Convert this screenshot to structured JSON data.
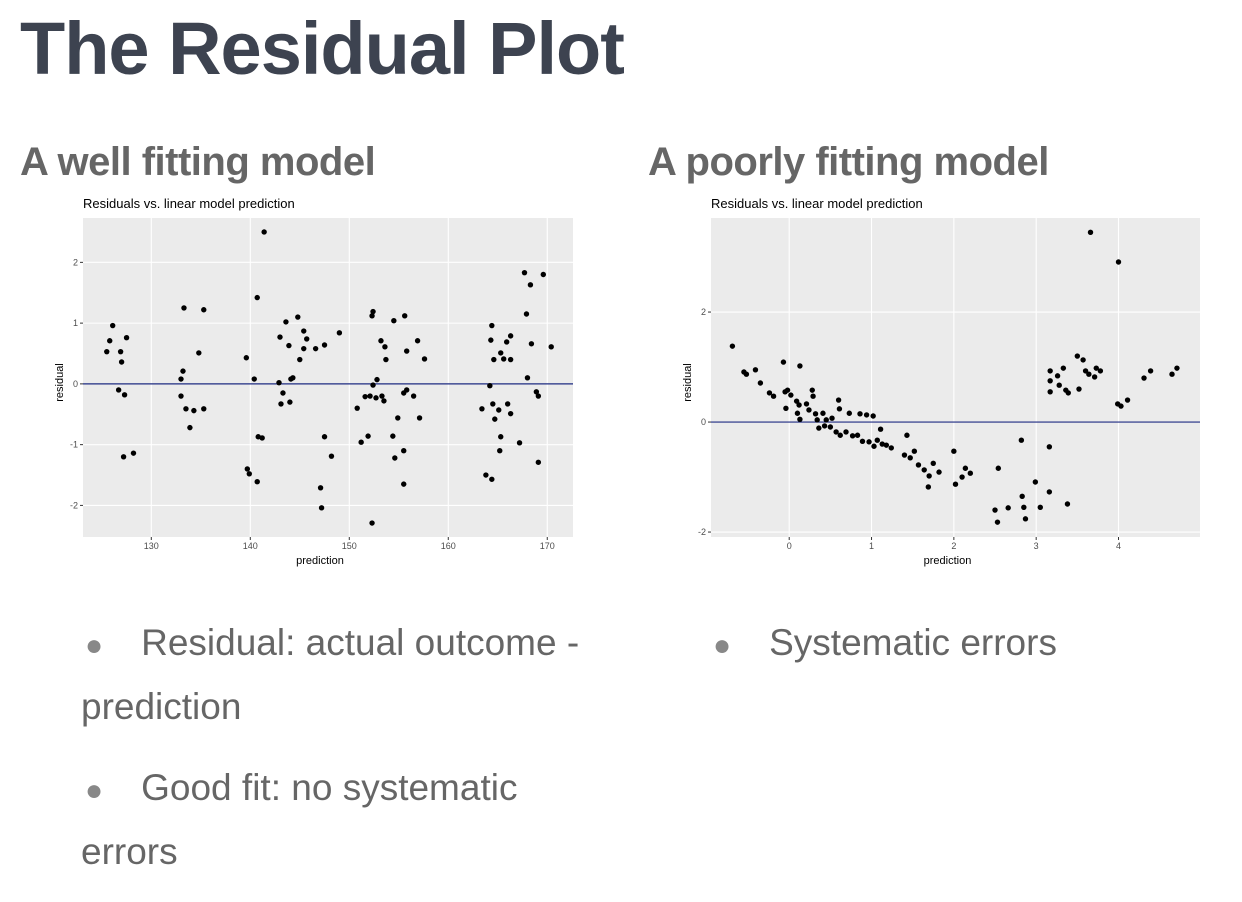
{
  "title": "The Residual Plot",
  "columns": [
    {
      "heading": "A well fitting model",
      "bullets": [
        "Residual: actual outcome - prediction",
        "Good fit: no systematic errors"
      ]
    },
    {
      "heading": "A poorly fitting model",
      "bullets": [
        "Systematic errors"
      ]
    }
  ],
  "chart_data": [
    {
      "type": "scatter",
      "title": "Residuals vs. linear model prediction",
      "xlabel": "prediction",
      "ylabel": "residual",
      "color": "#000000",
      "hline": 0,
      "hline_color": "#1c2a80",
      "grid": true,
      "xlim": [
        123.1,
        172.6
      ],
      "ylim": [
        -2.52,
        2.73
      ],
      "xticks": [
        130,
        140,
        150,
        160,
        170
      ],
      "yticks": [
        -2,
        -1,
        0,
        1,
        2
      ],
      "x": [
        125.5,
        125.8,
        126.1,
        126.9,
        127.0,
        127.5,
        126.7,
        127.3,
        127.2,
        128.2,
        133.3,
        135.3,
        133.2,
        133.0,
        133.0,
        133.5,
        134.3,
        135.3,
        134.8,
        133.9,
        139.6,
        140.4,
        140.7,
        141.4,
        139.7,
        139.9,
        140.7,
        140.8,
        141.2,
        143.0,
        143.6,
        143.9,
        144.8,
        145.4,
        144.1,
        144.3,
        142.9,
        143.3,
        143.1,
        144.0,
        145.7,
        145.4,
        145.0,
        146.6,
        147.5,
        149.0,
        147.5,
        148.2,
        147.1,
        147.2,
        152.3,
        152.4,
        152.3,
        153.2,
        153.6,
        153.7,
        154.5,
        155.6,
        155.8,
        156.9,
        157.6,
        152.4,
        152.8,
        152.1,
        152.7,
        153.3,
        153.5,
        151.6,
        150.8,
        151.2,
        151.9,
        154.9,
        154.4,
        154.6,
        155.5,
        155.5,
        155.8,
        155.5,
        156.5,
        157.1,
        164.4,
        164.3,
        165.3,
        165.6,
        165.9,
        166.3,
        166.3,
        164.6,
        164.2,
        163.4,
        164.5,
        164.7,
        165.1,
        166.0,
        166.3,
        165.3,
        165.2,
        163.8,
        164.4,
        167.2,
        167.7,
        168.3,
        169.6,
        167.9,
        168.4,
        170.4,
        168.0,
        168.9,
        169.1,
        169.1
      ],
      "values": [
        0.53,
        0.71,
        0.96,
        0.53,
        0.36,
        0.76,
        -0.1,
        -0.18,
        -1.2,
        -1.14,
        1.25,
        1.22,
        0.21,
        0.08,
        -0.2,
        -0.41,
        -0.44,
        -0.41,
        0.51,
        -0.72,
        0.43,
        0.08,
        1.42,
        2.5,
        -1.4,
        -1.48,
        -1.61,
        -0.87,
        -0.89,
        0.77,
        1.02,
        0.63,
        1.1,
        0.87,
        0.08,
        0.1,
        0.02,
        -0.15,
        -0.33,
        -0.3,
        0.74,
        0.58,
        0.4,
        0.58,
        0.64,
        0.84,
        -0.87,
        -1.19,
        -1.71,
        -2.04,
        -2.29,
        1.19,
        1.12,
        0.71,
        0.61,
        0.4,
        1.04,
        1.12,
        0.54,
        0.71,
        0.41,
        -0.02,
        0.07,
        -0.2,
        -0.23,
        -0.2,
        -0.28,
        -0.21,
        -0.4,
        -0.96,
        -0.86,
        -0.56,
        -0.86,
        -1.22,
        -1.1,
        -1.65,
        -0.1,
        -0.15,
        -0.2,
        -0.56,
        0.96,
        0.72,
        0.51,
        0.41,
        0.69,
        0.79,
        0.4,
        0.4,
        -0.03,
        -0.41,
        -0.33,
        -0.58,
        -0.43,
        -0.33,
        -0.49,
        -0.87,
        -1.1,
        -1.5,
        -1.57,
        -0.97,
        1.83,
        1.63,
        1.8,
        1.15,
        0.66,
        0.61,
        0.1,
        -0.13,
        -0.2,
        -1.29
      ]
    },
    {
      "type": "scatter",
      "title": "Residuals vs. linear model prediction",
      "xlabel": "prediction",
      "ylabel": "residual",
      "color": "#000000",
      "hline": 0,
      "hline_color": "#1c2a80",
      "grid": true,
      "xlim": [
        -0.95,
        4.99
      ],
      "ylim": [
        -2.09,
        3.71
      ],
      "xticks": [
        0,
        1,
        2,
        3,
        4
      ],
      "yticks": [
        -2,
        0,
        2
      ],
      "x": [
        -0.69,
        -0.55,
        -0.52,
        -0.41,
        -0.35,
        -0.24,
        -0.19,
        -0.07,
        -0.05,
        -0.02,
        -0.04,
        0.02,
        0.13,
        0.09,
        0.12,
        0.1,
        0.13,
        0.21,
        0.24,
        0.28,
        0.29,
        0.32,
        0.34,
        0.36,
        0.41,
        0.43,
        0.45,
        0.5,
        0.52,
        0.57,
        0.6,
        0.61,
        0.62,
        0.69,
        0.73,
        0.77,
        0.83,
        0.86,
        0.89,
        0.94,
        0.97,
        1.02,
        1.03,
        1.07,
        1.11,
        1.13,
        1.18,
        1.24,
        1.4,
        1.43,
        1.47,
        1.52,
        1.57,
        1.64,
        1.69,
        1.7,
        1.75,
        1.82,
        2.0,
        2.02,
        2.1,
        2.14,
        2.2,
        2.5,
        2.53,
        2.54,
        2.66,
        2.82,
        2.83,
        2.85,
        2.87,
        2.99,
        3.05,
        3.16,
        3.16,
        3.38,
        3.17,
        3.17,
        3.17,
        3.26,
        3.28,
        3.33,
        3.36,
        3.39,
        3.5,
        3.52,
        3.57,
        3.6,
        3.64,
        3.71,
        3.73,
        3.78,
        3.66,
        4.0,
        3.99,
        4.03,
        4.11,
        4.31,
        4.39,
        4.65,
        4.71
      ],
      "values": [
        1.38,
        0.91,
        0.87,
        0.95,
        0.71,
        0.53,
        0.47,
        1.09,
        0.55,
        0.58,
        0.25,
        0.49,
        1.02,
        0.38,
        0.31,
        0.16,
        0.05,
        0.33,
        0.22,
        0.58,
        0.47,
        0.15,
        0.04,
        -0.11,
        0.16,
        -0.07,
        0.04,
        -0.09,
        0.07,
        -0.18,
        0.4,
        0.24,
        -0.24,
        -0.18,
        0.16,
        -0.25,
        -0.24,
        0.15,
        -0.35,
        0.13,
        -0.36,
        0.11,
        -0.44,
        -0.33,
        -0.13,
        -0.4,
        -0.42,
        -0.47,
        -0.6,
        -0.24,
        -0.65,
        -0.53,
        -0.78,
        -0.87,
        -1.18,
        -0.98,
        -0.75,
        -0.91,
        -0.53,
        -1.13,
        -1.0,
        -0.84,
        -0.93,
        -1.6,
        -1.82,
        -0.84,
        -1.56,
        -0.33,
        -1.35,
        -1.55,
        -1.76,
        -1.09,
        -1.55,
        -0.45,
        -1.27,
        -1.49,
        0.93,
        0.75,
        0.55,
        0.84,
        0.67,
        0.98,
        0.58,
        0.53,
        1.2,
        0.6,
        1.13,
        0.93,
        0.87,
        0.82,
        0.98,
        0.93,
        3.45,
        2.91,
        0.33,
        0.29,
        0.4,
        0.8,
        0.93,
        0.87,
        0.98
      ]
    }
  ]
}
